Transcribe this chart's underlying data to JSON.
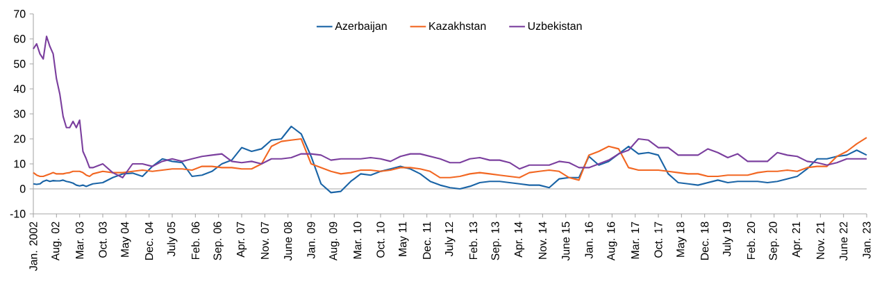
{
  "chart_data": {
    "type": "line",
    "x": [
      "2002-01",
      "2002-02",
      "2002-03",
      "2002-04",
      "2002-05",
      "2002-06",
      "2002-07",
      "2002-08",
      "2002-09",
      "2002-10",
      "2002-11",
      "2002-12",
      "2003-01",
      "2003-02",
      "2003-03",
      "2003-04",
      "2003-05",
      "2003-06",
      "2003-07",
      "2003-10",
      "2004-01",
      "2004-04",
      "2004-07",
      "2004-10",
      "2005-01",
      "2005-04",
      "2005-07",
      "2005-10",
      "2006-01",
      "2006-04",
      "2006-07",
      "2006-10",
      "2007-01",
      "2007-04",
      "2007-07",
      "2007-10",
      "2008-01",
      "2008-04",
      "2008-07",
      "2008-10",
      "2009-01",
      "2009-04",
      "2009-07",
      "2009-10",
      "2010-01",
      "2010-04",
      "2010-07",
      "2010-10",
      "2011-01",
      "2011-04",
      "2011-07",
      "2011-10",
      "2012-01",
      "2012-04",
      "2012-07",
      "2012-10",
      "2013-01",
      "2013-04",
      "2013-07",
      "2013-10",
      "2014-01",
      "2014-04",
      "2014-07",
      "2014-10",
      "2015-01",
      "2015-04",
      "2015-07",
      "2015-10",
      "2016-01",
      "2016-04",
      "2016-07",
      "2016-10",
      "2017-01",
      "2017-04",
      "2017-07",
      "2017-10",
      "2018-01",
      "2018-04",
      "2018-07",
      "2018-10",
      "2019-01",
      "2019-04",
      "2019-07",
      "2019-10",
      "2020-01",
      "2020-04",
      "2020-07",
      "2020-10",
      "2021-01",
      "2021-04",
      "2021-07",
      "2021-10",
      "2022-01",
      "2022-04",
      "2022-07",
      "2022-10",
      "2023-01"
    ],
    "series": [
      {
        "name": "Azerbaijan",
        "color": "#1a64a6",
        "values": [
          2,
          1.8,
          2,
          3,
          3.5,
          3,
          3.3,
          3.2,
          3.2,
          3.5,
          3,
          2.7,
          2.3,
          1.5,
          1.2,
          1.5,
          1,
          1.5,
          2,
          2.5,
          4.5,
          6,
          6.3,
          5,
          9,
          12,
          11,
          10.5,
          5,
          5.5,
          7,
          10,
          11.5,
          16.5,
          15,
          16,
          19.5,
          20,
          25,
          22,
          13,
          2,
          -1.5,
          -1,
          3,
          6,
          5.5,
          7,
          8,
          9,
          8,
          6,
          3,
          1.5,
          0.5,
          0,
          1,
          2.5,
          3,
          3,
          2.5,
          2,
          1.5,
          1.5,
          0.5,
          4,
          4.5,
          4.5,
          13,
          9.5,
          11,
          14,
          17,
          14,
          14.5,
          13.5,
          6,
          2.5,
          2,
          1.5,
          2.5,
          3.5,
          2.5,
          3,
          3,
          3,
          2.5,
          3,
          4,
          5,
          8,
          12,
          12,
          13,
          13.5,
          15.5,
          13.5
        ]
      },
      {
        "name": "Kazakhstan",
        "color": "#f26722",
        "values": [
          6.5,
          5.5,
          5,
          5,
          5.5,
          6,
          6.5,
          6,
          6,
          6,
          6.3,
          6.5,
          7,
          7,
          7,
          6.5,
          5.5,
          5,
          6,
          7,
          6.5,
          6.5,
          7,
          7.5,
          7,
          7.5,
          8,
          8,
          7.5,
          9,
          9,
          8.5,
          8.5,
          8,
          8,
          10,
          17,
          19,
          19.5,
          20,
          10,
          8.5,
          7,
          6,
          6.5,
          7.5,
          7.5,
          7,
          7.5,
          8.5,
          8.5,
          8,
          7,
          4.5,
          4.5,
          5,
          6,
          6.5,
          6,
          5.5,
          5,
          4.5,
          6.5,
          7,
          7.5,
          7,
          4.5,
          3.5,
          13.5,
          15,
          17,
          16,
          8.5,
          7.5,
          7.5,
          7.5,
          7,
          6.5,
          6,
          6,
          5,
          5,
          5.5,
          5.5,
          5.5,
          6.5,
          7,
          7,
          7.5,
          7,
          8.5,
          9,
          9,
          13,
          15,
          18,
          20.5
        ]
      },
      {
        "name": "Uzbekistan",
        "color": "#7b3f9e",
        "values": [
          56,
          58,
          54,
          52,
          61,
          57,
          54,
          44,
          38,
          29,
          24.5,
          24.5,
          27,
          24.5,
          27.5,
          15,
          12,
          8.5,
          8.5,
          10,
          6.5,
          4.5,
          10,
          10,
          9,
          11,
          12,
          11,
          12,
          13,
          13.5,
          14,
          11,
          10.5,
          11,
          10,
          12,
          12,
          12.5,
          14,
          14,
          13.5,
          11.5,
          12,
          12,
          12,
          12.5,
          12,
          11,
          13,
          14,
          14,
          13,
          12,
          10.5,
          10.5,
          12,
          12.5,
          11.5,
          11.5,
          10.5,
          8,
          9.5,
          9.5,
          9.5,
          11,
          10.5,
          8.5,
          8.5,
          10,
          11.5,
          14,
          15.5,
          20,
          19.5,
          16.5,
          16.5,
          13.5,
          13.5,
          13.5,
          16,
          14.5,
          12.5,
          14,
          11,
          11,
          11,
          14.5,
          13.5,
          13,
          11,
          10.5,
          9.5,
          10.5,
          12,
          12,
          12
        ]
      }
    ],
    "xlim": [
      "2002-01",
      "2023-01"
    ],
    "xticks": [
      {
        "value": "2002-01",
        "label": "Jan. 2002"
      },
      {
        "value": "2002-08",
        "label": "Aug. 02"
      },
      {
        "value": "2003-03",
        "label": "Mar. 03"
      },
      {
        "value": "2003-10",
        "label": "Oct. 03"
      },
      {
        "value": "2004-05",
        "label": "May 04"
      },
      {
        "value": "2004-12",
        "label": "Dec. 04"
      },
      {
        "value": "2005-07",
        "label": "July 05"
      },
      {
        "value": "2006-02",
        "label": "Feb. 06"
      },
      {
        "value": "2006-09",
        "label": "Sep. 06"
      },
      {
        "value": "2007-04",
        "label": "Apr. 07"
      },
      {
        "value": "2007-11",
        "label": "Nov. 07"
      },
      {
        "value": "2008-06",
        "label": "June 08"
      },
      {
        "value": "2009-01",
        "label": "Jan. 09"
      },
      {
        "value": "2009-08",
        "label": "Aug. 09"
      },
      {
        "value": "2010-03",
        "label": "Mar. 10"
      },
      {
        "value": "2010-10",
        "label": "Oct. 10"
      },
      {
        "value": "2011-05",
        "label": "May 11"
      },
      {
        "value": "2011-12",
        "label": "Dec. 11"
      },
      {
        "value": "2012-07",
        "label": "July 12"
      },
      {
        "value": "2013-02",
        "label": "Feb. 13"
      },
      {
        "value": "2013-09",
        "label": "Sep. 13"
      },
      {
        "value": "2014-04",
        "label": "Apr. 14"
      },
      {
        "value": "2014-11",
        "label": "Nov. 14"
      },
      {
        "value": "2015-06",
        "label": "June 15"
      },
      {
        "value": "2016-01",
        "label": "Jan. 16"
      },
      {
        "value": "2016-08",
        "label": "Aug. 16"
      },
      {
        "value": "2017-03",
        "label": "Mar. 17"
      },
      {
        "value": "2017-10",
        "label": "Oct. 17"
      },
      {
        "value": "2018-05",
        "label": "May 18"
      },
      {
        "value": "2018-12",
        "label": "Dec. 18"
      },
      {
        "value": "2019-07",
        "label": "July 19"
      },
      {
        "value": "2020-02",
        "label": "Feb. 20"
      },
      {
        "value": "2020-09",
        "label": "Sep. 20"
      },
      {
        "value": "2021-04",
        "label": "Apr. 21"
      },
      {
        "value": "2021-11",
        "label": "Nov. 21"
      },
      {
        "value": "2022-06",
        "label": "June 22"
      },
      {
        "value": "2023-01",
        "label": "Jan. 23"
      }
    ],
    "ylim": [
      -10,
      70
    ],
    "yticks": [
      -10,
      0,
      10,
      20,
      30,
      40,
      50,
      60,
      70
    ],
    "ref_lines": [
      {
        "axis": "y",
        "value": 0,
        "color": "#a6a6a6"
      }
    ],
    "legend": "top",
    "grid": false,
    "marker": "none",
    "line_style": "solid"
  }
}
